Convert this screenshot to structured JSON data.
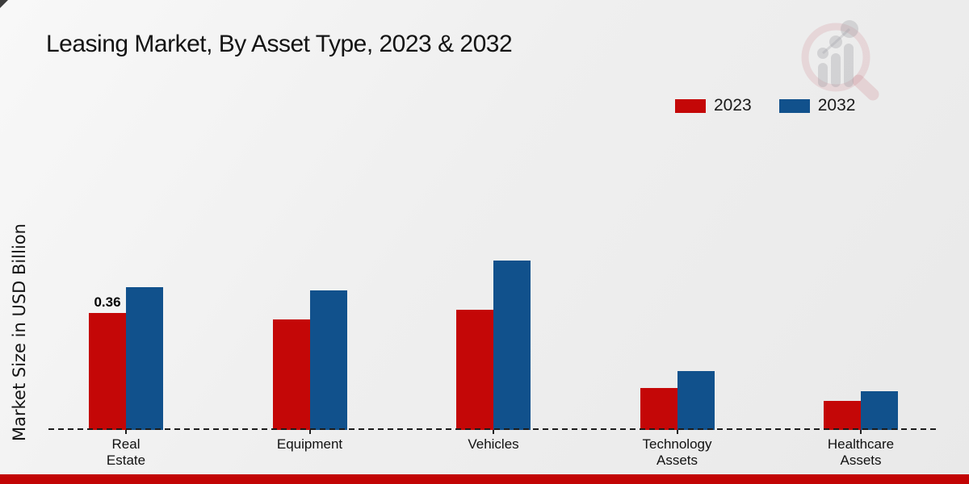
{
  "page": {
    "title": "Leasing Market, By Asset Type, 2023 & 2032",
    "ylabel": "Market Size in USD Billion"
  },
  "legend": {
    "items": [
      {
        "label": "2023",
        "color": "#c40707"
      },
      {
        "label": "2032",
        "color": "#11518c"
      }
    ]
  },
  "chart_data": {
    "type": "bar",
    "title": "Leasing Market, By Asset Type, 2023 & 2032",
    "xlabel": "",
    "ylabel": "Market Size in USD Billion",
    "categories": [
      "Real Estate",
      "Equipment",
      "Vehicles",
      "Technology Assets",
      "Healthcare Assets"
    ],
    "series": [
      {
        "name": "2023",
        "color": "#c40707",
        "values": [
          0.36,
          0.34,
          0.37,
          0.13,
          0.09
        ]
      },
      {
        "name": "2032",
        "color": "#11518c",
        "values": [
          0.44,
          0.43,
          0.52,
          0.18,
          0.12
        ]
      }
    ],
    "annotations": [
      {
        "text": "0.36",
        "category_index": 0,
        "series_index": 0
      }
    ],
    "ylim": [
      0,
      0.6
    ],
    "grid": false,
    "legend_position": "top-right",
    "baseline_style": "dashed",
    "y_axis_ticks_visible": false
  },
  "watermark": {
    "name": "market-research-future-logo"
  },
  "footer": {
    "color": "#c20404"
  }
}
